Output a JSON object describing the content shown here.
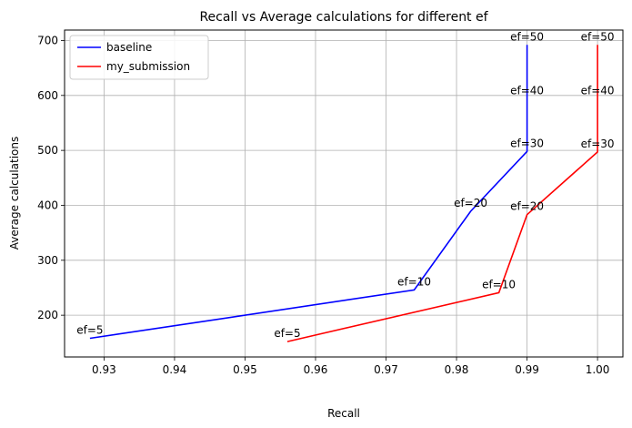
{
  "chart_data": {
    "type": "line",
    "title": "Recall vs Average calculations for different ef",
    "xlabel": "Recall",
    "ylabel": "Average calculations",
    "xlim": [
      0.9244,
      1.0036
    ],
    "ylim": [
      124,
      719
    ],
    "xticks": [
      0.93,
      0.94,
      0.95,
      0.96,
      0.97,
      0.98,
      0.99,
      1.0
    ],
    "xtick_labels": [
      "0.93",
      "0.94",
      "0.95",
      "0.96",
      "0.97",
      "0.98",
      "0.99",
      "1.00"
    ],
    "yticks": [
      200,
      300,
      400,
      500,
      600,
      700
    ],
    "ytick_labels": [
      "200",
      "300",
      "400",
      "500",
      "600",
      "700"
    ],
    "grid": true,
    "legend_position": "top-left",
    "series": [
      {
        "name": "baseline",
        "color": "#0000ff",
        "points": [
          {
            "x": 0.928,
            "y": 158,
            "label": "ef=5"
          },
          {
            "x": 0.974,
            "y": 246,
            "label": "ef=10"
          },
          {
            "x": 0.982,
            "y": 389,
            "label": "ef=20"
          },
          {
            "x": 0.99,
            "y": 498,
            "label": "ef=30"
          },
          {
            "x": 0.99,
            "y": 594,
            "label": "ef=40"
          },
          {
            "x": 0.99,
            "y": 692,
            "label": "ef=50"
          }
        ]
      },
      {
        "name": "my_submission",
        "color": "#ff0000",
        "points": [
          {
            "x": 0.956,
            "y": 152,
            "label": "ef=5"
          },
          {
            "x": 0.986,
            "y": 241,
            "label": "ef=10"
          },
          {
            "x": 0.99,
            "y": 383,
            "label": "ef=20"
          },
          {
            "x": 1.0,
            "y": 497,
            "label": "ef=30"
          },
          {
            "x": 1.0,
            "y": 594,
            "label": "ef=40"
          },
          {
            "x": 1.0,
            "y": 692,
            "label": "ef=50"
          }
        ]
      }
    ]
  }
}
